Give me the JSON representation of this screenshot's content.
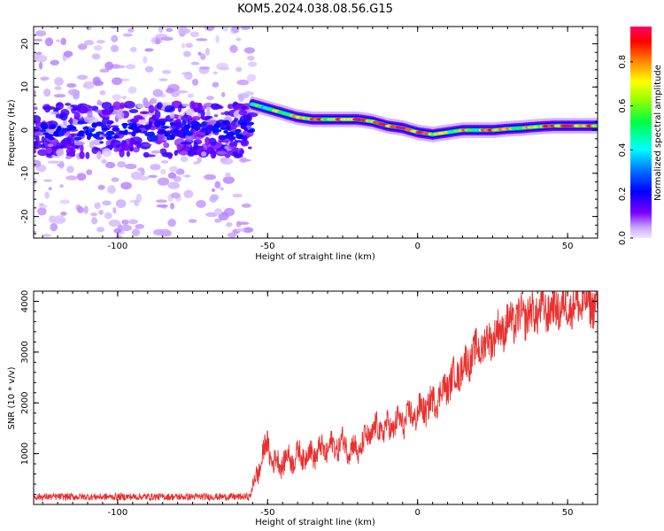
{
  "title": "KOM5.2024.038.08.56.G15",
  "chart_data": [
    {
      "type": "heatmap",
      "xlabel": "Height of straight line (km)",
      "ylabel": "Frequency (Hz)",
      "xlim": [
        -128,
        60
      ],
      "ylim": [
        -25,
        24
      ],
      "xticks": [
        -100,
        -50,
        0,
        50
      ],
      "yticks": [
        -20,
        -10,
        0,
        10,
        20
      ],
      "colorbar": {
        "label": "Normalized spectral amplitude",
        "range": [
          0,
          1
        ],
        "ticks": [
          0.0,
          0.2,
          0.4,
          0.6,
          0.8
        ],
        "colormap": [
          "#e8dcff",
          "#7a00ff",
          "#0000ff",
          "#00ffff",
          "#00ff00",
          "#ffff00",
          "#ff0000",
          "#ff0066"
        ]
      },
      "ridge": {
        "x": [
          -55,
          -50,
          -45,
          -40,
          -35,
          -30,
          -25,
          -20,
          -15,
          -10,
          -5,
          0,
          5,
          10,
          15,
          20,
          25,
          30,
          35,
          40,
          45,
          50,
          55,
          60
        ],
        "frequency": [
          6,
          5,
          4,
          3,
          2.5,
          2.5,
          2.5,
          2.5,
          2,
          1,
          0.5,
          -0.5,
          -1,
          -0.5,
          0,
          0,
          0,
          0.3,
          0.5,
          0.8,
          1,
          1,
          1,
          1
        ],
        "amplitude": [
          0.45,
          0.55,
          0.6,
          0.7,
          0.85,
          0.7,
          0.75,
          0.9,
          0.8,
          0.9,
          0.95,
          0.85,
          0.8,
          0.6,
          0.7,
          0.6,
          0.9,
          0.7,
          0.6,
          0.75,
          0.85,
          0.9,
          0.85,
          0.7
        ]
      },
      "noise_region": {
        "x_range": [
          -128,
          -55
        ],
        "note": "diffuse low-amplitude noise"
      }
    },
    {
      "type": "line",
      "xlabel": "Height of straight line (km)",
      "ylabel": "SNR (10 * v/v)",
      "xlim": [
        -128,
        60
      ],
      "ylim": [
        0,
        4200
      ],
      "xticks": [
        -100,
        -50,
        0,
        50
      ],
      "yticks": [
        1000,
        2000,
        3000,
        4000
      ],
      "series": [
        {
          "color": "#e8312f",
          "x": [
            -128,
            -60,
            -56,
            -55,
            -52,
            -50,
            -48,
            -45,
            -40,
            -35,
            -30,
            -25,
            -20,
            -15,
            -10,
            -5,
            0,
            5,
            10,
            15,
            20,
            25,
            30,
            35,
            40,
            45,
            50,
            55,
            60
          ],
          "values": [
            150,
            150,
            150,
            300,
            900,
            1200,
            800,
            850,
            950,
            1000,
            1100,
            1200,
            1050,
            1450,
            1500,
            1650,
            1800,
            2000,
            2350,
            2700,
            3050,
            3300,
            3550,
            3700,
            3800,
            3850,
            3900,
            3950,
            3950
          ]
        }
      ]
    }
  ]
}
